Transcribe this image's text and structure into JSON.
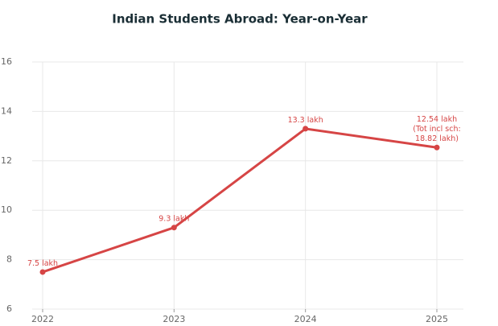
{
  "chart_data": {
    "type": "line",
    "title": "Indian Students Abroad: Year-on-Year",
    "categories": [
      "2022",
      "2023",
      "2024",
      "2025"
    ],
    "series": [
      {
        "name": "Indian Students Abroad",
        "color": "#d64545",
        "values": [
          7.5,
          9.3,
          13.3,
          12.54
        ],
        "value_labels": [
          [
            "7.5 lakh"
          ],
          [
            "9.3 lakh"
          ],
          [
            "13.3 lakh"
          ],
          [
            "12.54 lakh",
            "(Tot incl sch:",
            "18.82 lakh)"
          ]
        ]
      }
    ],
    "ylim": [
      6,
      16
    ],
    "yticks": [
      6,
      8,
      10,
      12,
      14,
      16
    ],
    "grid": true
  }
}
